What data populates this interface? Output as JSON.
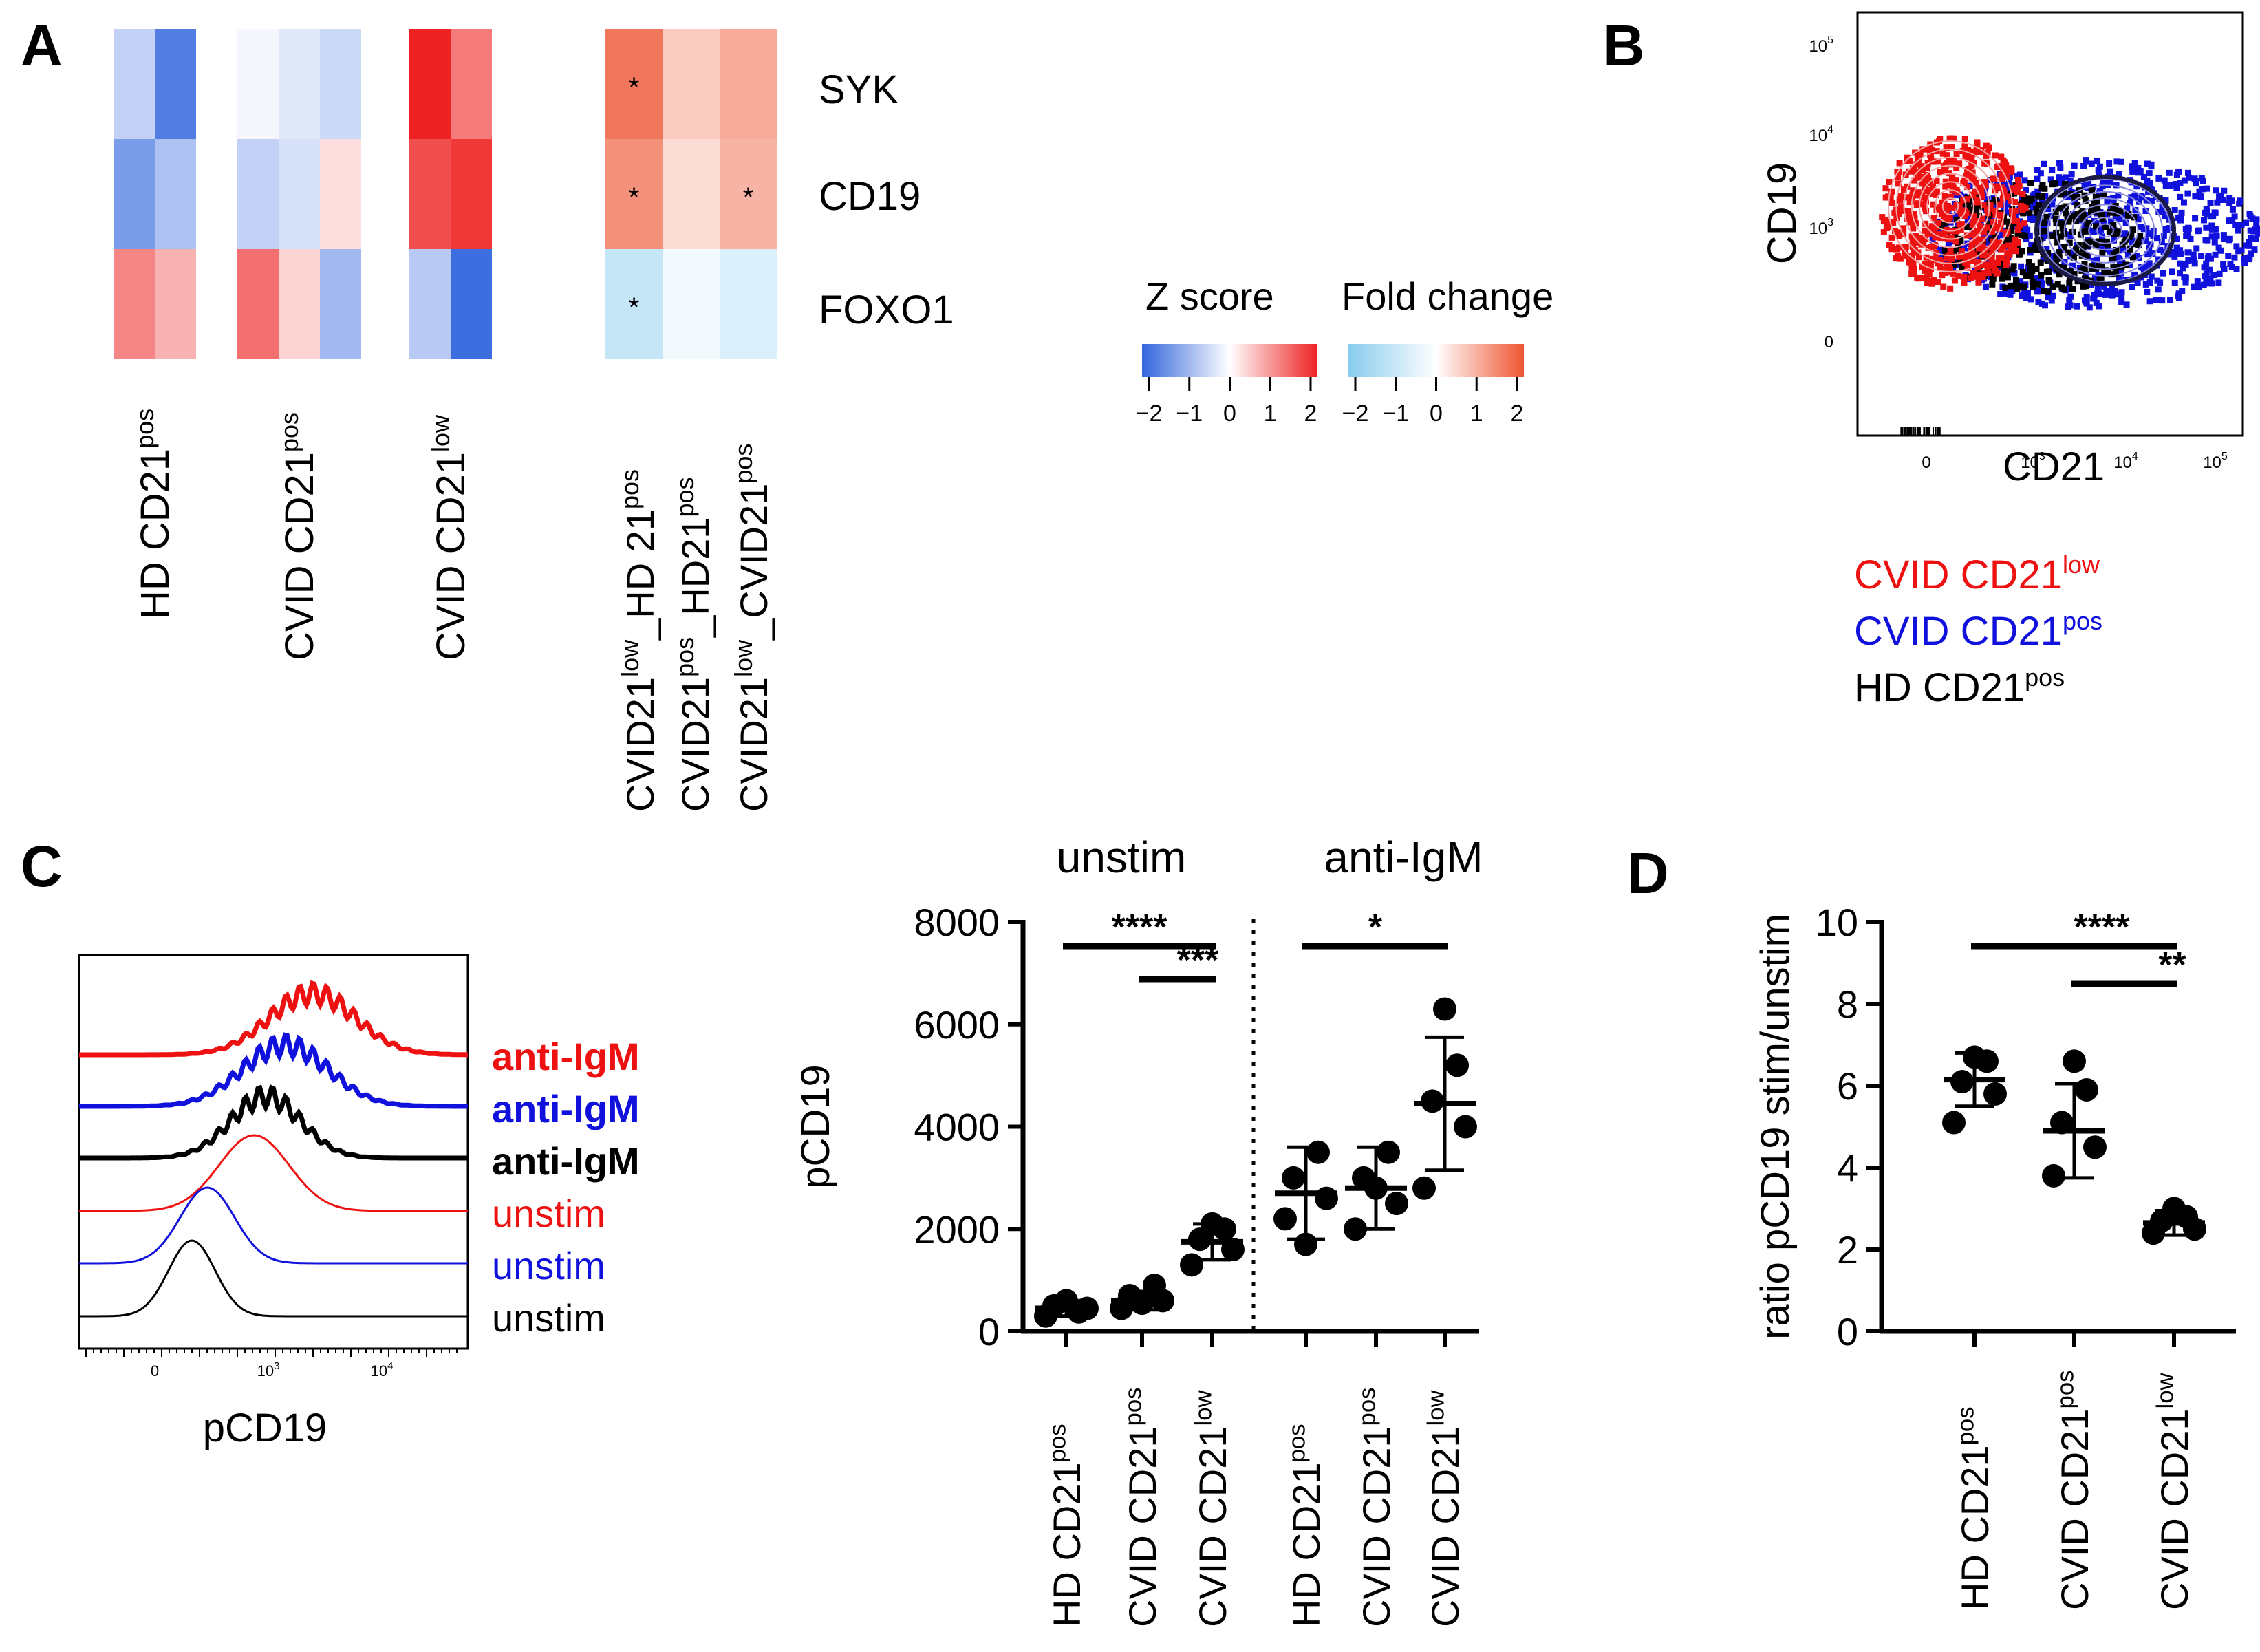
{
  "panel_labels": {
    "a": "A",
    "b": "B",
    "c": "C",
    "d": "D"
  },
  "colors": {
    "red": "#ee1111",
    "blue": "#1111dd",
    "black": "#000000",
    "zlow": "#3366dd",
    "zhigh": "#ee2222",
    "fclow": "#88ccee",
    "fchigh": "#ee5533"
  },
  "panel_a": {
    "genes": [
      "SYK",
      "CD19",
      "FOXO1"
    ],
    "zscore_groups": [
      {
        "label": "HD CD21",
        "sup": "pos",
        "values": [
          [
            -0.6,
            -1.7
          ],
          [
            -1.3,
            -0.8
          ],
          [
            1.1,
            0.7
          ]
        ]
      },
      {
        "label": "CVID CD21",
        "sup": "pos",
        "values": [
          [
            -0.1,
            -0.3,
            -0.5
          ],
          [
            -0.6,
            -0.4,
            0.3
          ],
          [
            1.3,
            0.4,
            -0.9
          ]
        ]
      },
      {
        "label": "CVID CD21",
        "sup": "low",
        "values": [
          [
            2.0,
            1.2
          ],
          [
            1.6,
            1.8
          ],
          [
            -0.7,
            -1.9
          ]
        ]
      }
    ],
    "foldchange": {
      "columns": [
        {
          "p1": "CVID21",
          "s1": "low",
          "p2": "_HD 21",
          "s2": "pos"
        },
        {
          "p1": "CVID21",
          "s1": "pos",
          "p2": "_HD21",
          "s2": "pos"
        },
        {
          "p1": "CVID21",
          "s1": "low",
          "p2": "_CVID21",
          "s2": "pos"
        }
      ],
      "values": [
        [
          1.6,
          0.6,
          1.0
        ],
        [
          1.3,
          0.4,
          0.9
        ],
        [
          -1.0,
          -0.2,
          -0.6
        ]
      ],
      "stars": [
        [
          "*",
          "",
          ""
        ],
        [
          "*",
          "",
          "*"
        ],
        [
          "*",
          "",
          ""
        ]
      ]
    },
    "legend": {
      "zscore_title": "Z score",
      "fold_title": "Fold change",
      "ticks": [
        "−2",
        "−1",
        "0",
        "1",
        "2"
      ]
    }
  },
  "panel_b": {
    "ylabel": "CD19",
    "xlabel": "CD21",
    "xticks": [
      "0",
      "10",
      "10",
      "10"
    ],
    "xtick_exp": [
      "",
      "3",
      "4",
      "5"
    ],
    "yticks": [
      "0",
      "10",
      "10",
      "10"
    ],
    "ytick_exp": [
      "",
      "3",
      "4",
      "5"
    ],
    "legend": [
      {
        "label": "CVID CD21",
        "sup": "low",
        "color": "#ee1111"
      },
      {
        "label": "CVID CD21",
        "sup": "pos",
        "color": "#1111dd"
      },
      {
        "label": "HD CD21",
        "sup": "pos",
        "color": "#000000"
      }
    ]
  },
  "panel_c_hist": {
    "xlabel": "pCD19",
    "xticks": [
      "0",
      "10",
      "10"
    ],
    "xtick_exp": [
      "",
      "3",
      "4"
    ],
    "traces": [
      {
        "label": "anti-IgM",
        "color": "#ee1111",
        "bold": true,
        "center": 0.6,
        "width": 0.11
      },
      {
        "label": "anti-IgM",
        "color": "#1111dd",
        "bold": true,
        "center": 0.53,
        "width": 0.11
      },
      {
        "label": "anti-IgM",
        "color": "#000000",
        "bold": true,
        "center": 0.48,
        "width": 0.09
      },
      {
        "label": "unstim",
        "color": "#ee1111",
        "bold": false,
        "center": 0.45,
        "width": 0.09
      },
      {
        "label": "unstim",
        "color": "#1111dd",
        "bold": false,
        "center": 0.33,
        "width": 0.07
      },
      {
        "label": "unstim",
        "color": "#000000",
        "bold": false,
        "center": 0.29,
        "width": 0.06
      }
    ]
  },
  "chart_data": [
    {
      "type": "scatter",
      "title": "",
      "group_titles": [
        "unstim",
        "anti-IgM"
      ],
      "ylabel": "pCD19",
      "xlabel": "",
      "ylim": [
        0,
        8000
      ],
      "yticks": [
        "0",
        "2000",
        "4000",
        "6000",
        "8000"
      ],
      "categories": [
        {
          "label": "HD CD21",
          "sup": "pos"
        },
        {
          "label": "CVID CD21",
          "sup": "pos"
        },
        {
          "label": "CVID CD21",
          "sup": "low"
        },
        {
          "label": "HD CD21",
          "sup": "pos"
        },
        {
          "label": "CVID CD21",
          "sup": "pos"
        },
        {
          "label": "CVID CD21",
          "sup": "low"
        }
      ],
      "points": [
        [
          300,
          450,
          500,
          380,
          600
        ],
        [
          450,
          600,
          700,
          900,
          550
        ],
        [
          1300,
          1600,
          1800,
          2000,
          2100
        ],
        [
          2200,
          2600,
          3000,
          3500,
          1700
        ],
        [
          2000,
          2500,
          3000,
          3500,
          2800
        ],
        [
          2800,
          4000,
          4500,
          5200,
          6300
        ]
      ],
      "mean": [
        450,
        600,
        1750,
        2700,
        2800,
        4450
      ],
      "sd": [
        150,
        180,
        350,
        900,
        800,
        1300
      ],
      "significance": [
        {
          "from": 0,
          "to": 2,
          "label": "****"
        },
        {
          "from": 1,
          "to": 2,
          "label": "***"
        },
        {
          "from": 3,
          "to": 5,
          "label": "*"
        }
      ]
    },
    {
      "type": "scatter",
      "title": "",
      "ylabel": "ratio pCD19 stim/unstim",
      "xlabel": "",
      "ylim": [
        0,
        10
      ],
      "yticks": [
        "0",
        "2",
        "4",
        "6",
        "8",
        "10"
      ],
      "categories": [
        {
          "label": "HD CD21",
          "sup": "pos"
        },
        {
          "label": "CVID CD21",
          "sup": "pos"
        },
        {
          "label": "CVID CD21",
          "sup": "low"
        }
      ],
      "points": [
        [
          5.1,
          5.8,
          6.1,
          6.6,
          6.7
        ],
        [
          3.8,
          4.5,
          5.1,
          5.9,
          6.6
        ],
        [
          2.4,
          2.5,
          2.7,
          2.8,
          3.0
        ]
      ],
      "mean": [
        6.15,
        4.9,
        2.65
      ],
      "sd": [
        0.65,
        1.15,
        0.3
      ],
      "significance": [
        {
          "from": 0,
          "to": 2,
          "label": "****"
        },
        {
          "from": 1,
          "to": 2,
          "label": "**"
        }
      ]
    }
  ]
}
